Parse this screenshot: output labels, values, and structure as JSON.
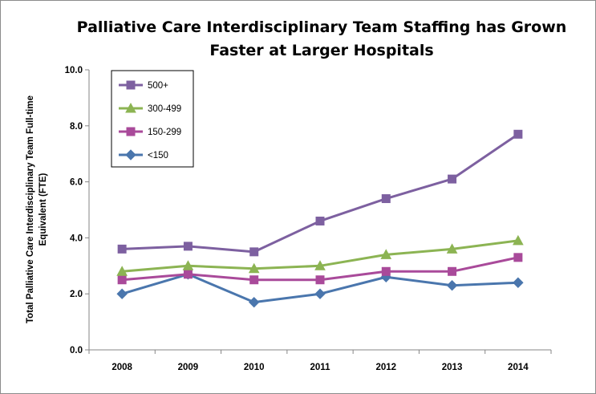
{
  "chart_data": {
    "type": "line",
    "title_lines": [
      "Palliative Care Interdisciplinary Team Staffing has Grown",
      "Faster at Larger Hospitals"
    ],
    "xlabel": "",
    "ylabel_lines": [
      "Total Palliative Care Interdisciplinary Team Full-time",
      "Equivalent (FTE)"
    ],
    "categories": [
      "2008",
      "2009",
      "2010",
      "2011",
      "2012",
      "2013",
      "2014"
    ],
    "ylim": [
      0,
      10
    ],
    "yticks": [
      "0.0",
      "2.0",
      "4.0",
      "6.0",
      "8.0",
      "10.0"
    ],
    "grid": false,
    "legend_position": "top-left",
    "series": [
      {
        "name": "500+",
        "color": "#7d60a0",
        "marker": "square",
        "values": [
          3.6,
          3.7,
          3.5,
          4.6,
          5.4,
          6.1,
          7.7
        ]
      },
      {
        "name": "300-499",
        "color": "#8cb453",
        "marker": "triangle",
        "values": [
          2.8,
          3.0,
          2.9,
          3.0,
          3.4,
          3.6,
          3.9
        ]
      },
      {
        "name": "150-299",
        "color": "#a94a9a",
        "marker": "square",
        "values": [
          2.5,
          2.7,
          2.5,
          2.5,
          2.8,
          2.8,
          3.3
        ]
      },
      {
        "name": "<150",
        "color": "#4a76ad",
        "marker": "diamond",
        "values": [
          2.0,
          2.7,
          1.7,
          2.0,
          2.6,
          2.3,
          2.4
        ]
      }
    ]
  }
}
